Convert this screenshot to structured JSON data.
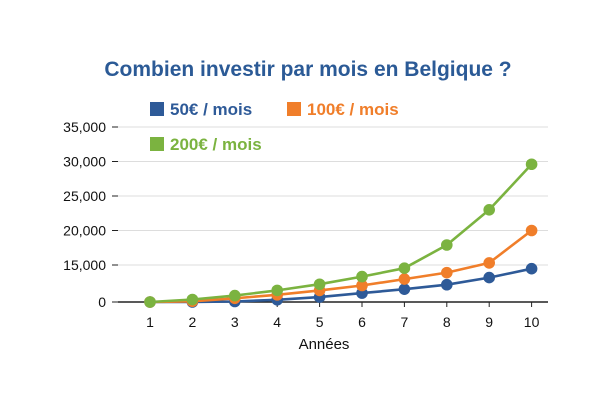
{
  "chart_data": {
    "type": "line",
    "title": "Combien investir par mois en Belgique ?",
    "xlabel": "Années",
    "ylabel": "",
    "x": [
      1,
      2,
      3,
      4,
      5,
      6,
      7,
      8,
      9,
      10
    ],
    "x_tick_labels": [
      "1",
      "2",
      "3",
      "4",
      "5",
      "6",
      "7",
      "8",
      "9",
      "10"
    ],
    "y_tick_values": [
      0,
      15000,
      20000,
      25000,
      30000,
      35000
    ],
    "y_tick_labels": [
      "0",
      "15,000",
      "20,000",
      "25,000",
      "30,000",
      "35,000"
    ],
    "grid": true,
    "legend_position": "top-left",
    "series": [
      {
        "name": "50€ / mois",
        "color": "#2e5a98",
        "values": [
          0,
          0,
          200,
          900,
          2000,
          3600,
          5200,
          7000,
          9900,
          13500
        ]
      },
      {
        "name": "100€ / mois",
        "color": "#f07e2a",
        "values": [
          0,
          300,
          1500,
          2900,
          4700,
          6700,
          9300,
          11900,
          15300,
          20000
        ]
      },
      {
        "name": "200€ / mois",
        "color": "#7bb340",
        "values": [
          0,
          1000,
          2600,
          4700,
          7200,
          10300,
          13700,
          17900,
          23000,
          29600
        ]
      }
    ],
    "colors": {
      "title": "#2b5a96",
      "axis": "#222222",
      "grid": "#dddddd"
    }
  }
}
